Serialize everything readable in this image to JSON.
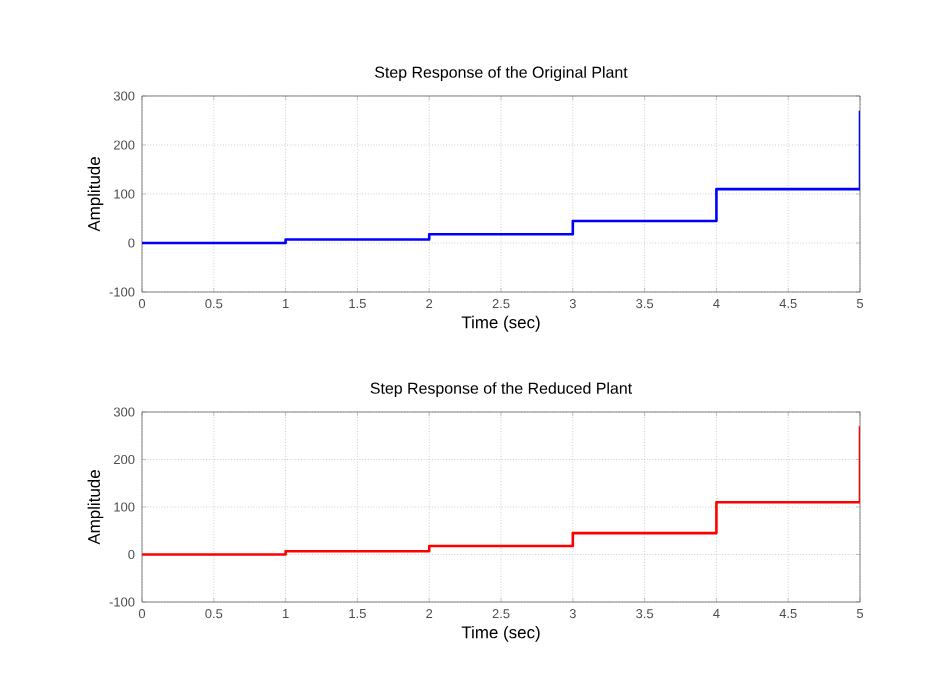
{
  "chart_data": [
    {
      "type": "step",
      "title": "Step Response of the Original Plant",
      "xlabel": "Time (sec)",
      "ylabel": "Amplitude",
      "x": [
        0,
        1,
        2,
        3,
        4,
        5
      ],
      "series": [
        {
          "color": "#0000ff",
          "values": [
            0,
            7,
            18,
            45,
            110,
            270
          ]
        }
      ],
      "xlim": [
        0,
        5
      ],
      "ylim": [
        -100,
        300
      ],
      "xticks": [
        0,
        0.5,
        1,
        1.5,
        2,
        2.5,
        3,
        3.5,
        4,
        4.5,
        5
      ],
      "yticks": [
        -100,
        0,
        100,
        200,
        300
      ],
      "grid": true
    },
    {
      "type": "step",
      "title": "Step Response of the Reduced Plant",
      "xlabel": "Time (sec)",
      "ylabel": "Amplitude",
      "x": [
        0,
        1,
        2,
        3,
        4,
        5
      ],
      "series": [
        {
          "color": "#ff0000",
          "values": [
            0,
            7,
            18,
            45,
            110,
            270
          ]
        }
      ],
      "xlim": [
        0,
        5
      ],
      "ylim": [
        -100,
        300
      ],
      "xticks": [
        0,
        0.5,
        1,
        1.5,
        2,
        2.5,
        3,
        3.5,
        4,
        4.5,
        5
      ],
      "yticks": [
        -100,
        0,
        100,
        200,
        300
      ],
      "grid": true
    }
  ]
}
